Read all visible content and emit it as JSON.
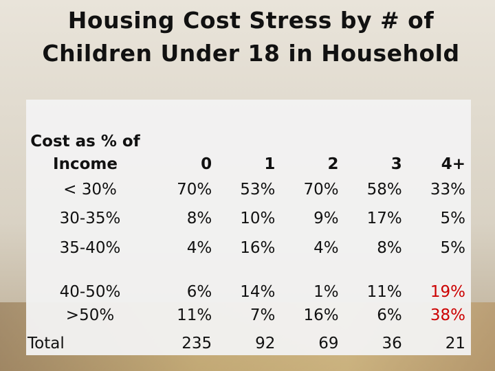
{
  "title": "Housing Cost Stress by # of Children Under 18 in Household",
  "table": {
    "header": [
      "Cost as % of Income",
      "0",
      "1",
      "2",
      "3",
      "4+"
    ],
    "rows": [
      [
        "< 30%",
        "70%",
        "53%",
        "70%",
        "58%",
        "33%"
      ],
      [
        "30-35%",
        "8%",
        "10%",
        "9%",
        "17%",
        "5%"
      ],
      [
        "35-40%",
        "4%",
        "16%",
        "4%",
        "8%",
        "5%"
      ],
      [
        "40-50%",
        "6%",
        "14%",
        "1%",
        "11%",
        "19%"
      ],
      [
        ">50%",
        "11%",
        "7%",
        "16%",
        "6%",
        "38%"
      ],
      [
        "Total",
        "235",
        "92",
        "69",
        "36",
        "21"
      ]
    ]
  }
}
